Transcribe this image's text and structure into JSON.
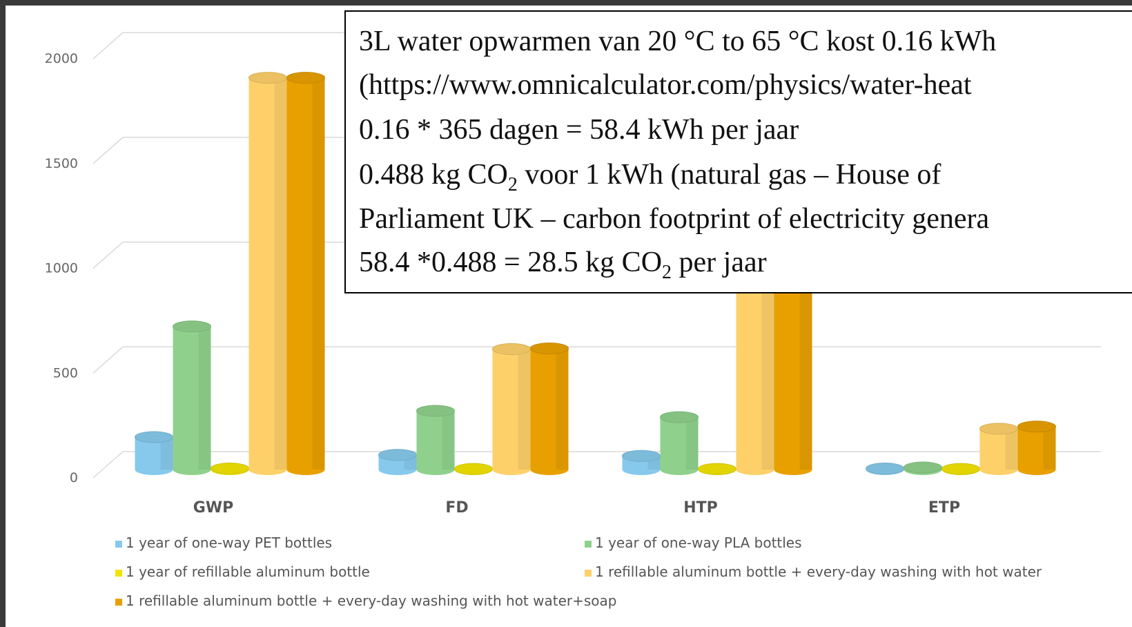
{
  "chart_data": {
    "type": "bar",
    "categories": [
      "GWP",
      "FD",
      "HTP",
      "ETP"
    ],
    "series": [
      {
        "name": "1 year of one-way PET bottles",
        "color": "#86c9ec",
        "values": [
          155,
          70,
          65,
          5
        ]
      },
      {
        "name": "1 year of one-way PLA bottles",
        "color": "#8fd18c",
        "values": [
          683,
          280,
          250,
          10
        ]
      },
      {
        "name": "1 year of refillable aluminum bottle",
        "color": "#f2e400",
        "values": [
          5,
          3,
          3,
          3
        ]
      },
      {
        "name": "1 refillable aluminum bottle + every-day washing with hot water",
        "color": "#fdd06a",
        "values": [
          1870,
          575,
          1000,
          195
        ]
      },
      {
        "name": "1 refillable aluminum bottle + every-day washing with hot water+soap",
        "color": "#e8a000",
        "values": [
          1870,
          578,
          1000,
          205
        ]
      }
    ],
    "ylim": [
      0,
      2000
    ],
    "yticks": [
      0,
      500,
      1000,
      1500,
      2000
    ],
    "grid": true,
    "legend": "bottom",
    "annotation": [
      [
        "3L water opwarmen van 20 °C to 65 °C kost 0.16 kWh"
      ],
      [
        "(https://www.omnicalculator.com/physics/water-heat"
      ],
      [
        "0.16 * 365 dagen = 58.4 kWh per jaar"
      ],
      [
        "0.488 kg CO",
        "2",
        " voor 1 kWh (natural gas – House of"
      ],
      [
        "Parliament UK – carbon footprint of electricity genera"
      ],
      [
        "58.4 *0.488 = 28.5 kg CO",
        "2",
        " per jaar"
      ]
    ]
  }
}
